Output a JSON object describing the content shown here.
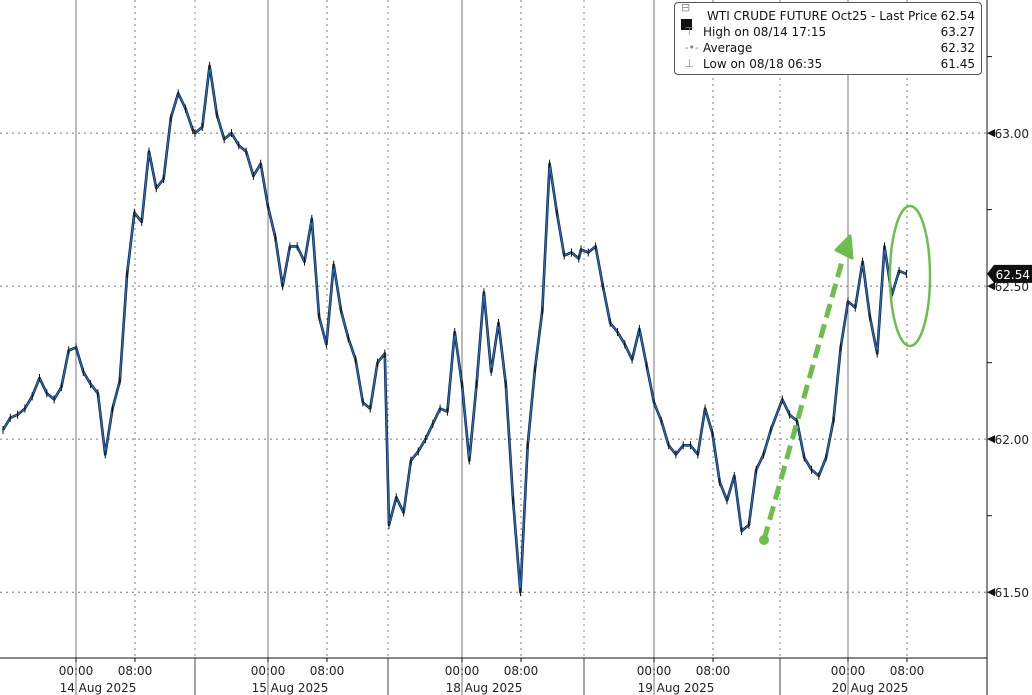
{
  "chart_data": {
    "type": "line",
    "title": "",
    "xlabel": "",
    "ylabel": "",
    "ylim": [
      61.285,
      63.435
    ],
    "grid": true,
    "legend_position": "top-right",
    "y_axis_side": "right",
    "y_ticks": [
      "61.50",
      "62.00",
      "62.50",
      "63.00"
    ],
    "x_tick_labels": [
      {
        "time": "00:00",
        "day": "14 Aug 2025"
      },
      {
        "time": "08:00",
        "day": "14 Aug 2025"
      },
      {
        "time": "00:00",
        "day": "15 Aug 2025"
      },
      {
        "time": "08:00",
        "day": "15 Aug 2025"
      },
      {
        "time": "00:00",
        "day": "18 Aug 2025"
      },
      {
        "time": "08:00",
        "day": "18 Aug 2025"
      },
      {
        "time": "00:00",
        "day": "19 Aug 2025"
      },
      {
        "time": "08:00",
        "day": "19 Aug 2025"
      },
      {
        "time": "00:00",
        "day": "20 Aug 2025"
      },
      {
        "time": "08:00",
        "day": "20 Aug 2025"
      }
    ],
    "days": [
      "14 Aug 2025",
      "15 Aug 2025",
      "18 Aug 2025",
      "19 Aug 2025",
      "20 Aug 2025"
    ],
    "series": [
      {
        "name": "WTI CRUDE FUTURE Oct25 - Last Price",
        "color": "#1f6fd0",
        "days": [
          {
            "day": "14 Aug 2025",
            "points": [
              [
                "14:00",
                62.03
              ],
              [
                "15:00",
                62.07
              ],
              [
                "16:00",
                62.08
              ],
              [
                "17:00",
                62.1
              ],
              [
                "18:00",
                62.14
              ],
              [
                "19:00",
                62.2
              ],
              [
                "20:00",
                62.15
              ],
              [
                "21:00",
                62.13
              ],
              [
                "22:00",
                62.17
              ],
              [
                "23:00",
                62.29
              ],
              [
                "00:00",
                62.3
              ],
              [
                "01:00",
                62.22
              ],
              [
                "02:00",
                62.18
              ],
              [
                "03:00",
                62.15
              ],
              [
                "04:00",
                61.95
              ],
              [
                "05:00",
                62.1
              ],
              [
                "06:00",
                62.19
              ],
              [
                "07:00",
                62.54
              ],
              [
                "08:00",
                62.74
              ],
              [
                "09:00",
                62.71
              ],
              [
                "10:00",
                62.94
              ],
              [
                "11:00",
                62.82
              ],
              [
                "12:00",
                62.85
              ],
              [
                "13:00",
                63.05
              ],
              [
                "14:00",
                63.13
              ],
              [
                "15:00",
                63.08
              ],
              [
                "16:00",
                63.01
              ]
            ]
          },
          {
            "day": "15 Aug 2025",
            "points": [
              [
                "14:00",
                63.0
              ],
              [
                "15:00",
                63.02
              ],
              [
                "16:00",
                63.22
              ],
              [
                "17:00",
                63.06
              ],
              [
                "18:00",
                62.98
              ],
              [
                "19:00",
                63.0
              ],
              [
                "20:00",
                62.96
              ],
              [
                "21:00",
                62.94
              ],
              [
                "22:00",
                62.86
              ],
              [
                "23:00",
                62.9
              ],
              [
                "00:00",
                62.76
              ],
              [
                "01:00",
                62.66
              ],
              [
                "02:00",
                62.5
              ],
              [
                "03:00",
                62.63
              ],
              [
                "04:00",
                62.63
              ],
              [
                "05:00",
                62.58
              ],
              [
                "06:00",
                62.72
              ],
              [
                "07:00",
                62.4
              ],
              [
                "08:00",
                62.31
              ],
              [
                "09:00",
                62.57
              ],
              [
                "10:00",
                62.42
              ],
              [
                "11:00",
                62.33
              ],
              [
                "12:00",
                62.26
              ],
              [
                "13:00",
                62.12
              ],
              [
                "14:00",
                62.1
              ],
              [
                "15:00",
                62.25
              ],
              [
                "16:00",
                62.28
              ]
            ]
          },
          {
            "day": "18 Aug 2025",
            "points": [
              [
                "14:00",
                61.72
              ],
              [
                "15:00",
                61.81
              ],
              [
                "16:00",
                61.76
              ],
              [
                "17:00",
                61.93
              ],
              [
                "18:00",
                61.96
              ],
              [
                "19:00",
                62.0
              ],
              [
                "20:00",
                62.05
              ],
              [
                "21:00",
                62.1
              ],
              [
                "22:00",
                62.09
              ],
              [
                "23:00",
                62.35
              ],
              [
                "00:00",
                62.18
              ],
              [
                "01:00",
                61.93
              ],
              [
                "02:00",
                62.18
              ],
              [
                "03:00",
                62.48
              ],
              [
                "04:00",
                62.22
              ],
              [
                "05:00",
                62.38
              ],
              [
                "06:00",
                62.18
              ],
              [
                "07:00",
                61.8
              ],
              [
                "08:00",
                61.5
              ],
              [
                "09:00",
                61.98
              ],
              [
                "10:00",
                62.23
              ],
              [
                "11:00",
                62.42
              ],
              [
                "12:00",
                62.9
              ],
              [
                "13:00",
                62.74
              ],
              [
                "14:00",
                62.6
              ],
              [
                "15:00",
                62.61
              ],
              [
                "16:00",
                62.59
              ]
            ]
          },
          {
            "day": "19 Aug 2025",
            "points": [
              [
                "14:00",
                62.62
              ],
              [
                "15:00",
                62.61
              ],
              [
                "16:00",
                62.63
              ],
              [
                "17:00",
                62.5
              ],
              [
                "18:00",
                62.38
              ],
              [
                "19:00",
                62.35
              ],
              [
                "20:00",
                62.31
              ],
              [
                "21:00",
                62.26
              ],
              [
                "22:00",
                62.36
              ],
              [
                "23:00",
                62.24
              ],
              [
                "00:00",
                62.12
              ],
              [
                "01:00",
                62.06
              ],
              [
                "02:00",
                61.98
              ],
              [
                "03:00",
                61.95
              ],
              [
                "04:00",
                61.98
              ],
              [
                "05:00",
                61.98
              ],
              [
                "06:00",
                61.95
              ],
              [
                "07:00",
                62.1
              ],
              [
                "08:00",
                62.02
              ],
              [
                "09:00",
                61.86
              ],
              [
                "10:00",
                61.8
              ],
              [
                "11:00",
                61.88
              ],
              [
                "12:00",
                61.7
              ],
              [
                "13:00",
                61.72
              ],
              [
                "14:00",
                61.9
              ],
              [
                "15:00",
                61.95
              ],
              [
                "16:00",
                62.03
              ]
            ]
          },
          {
            "day": "20 Aug 2025",
            "points": [
              [
                "15:00",
                62.13
              ],
              [
                "16:00",
                62.08
              ],
              [
                "17:00",
                62.06
              ],
              [
                "18:00",
                61.94
              ],
              [
                "19:00",
                61.9
              ],
              [
                "20:00",
                61.88
              ],
              [
                "21:00",
                61.94
              ],
              [
                "22:00",
                62.06
              ],
              [
                "23:00",
                62.3
              ],
              [
                "00:00",
                62.45
              ],
              [
                "01:00",
                62.43
              ],
              [
                "02:00",
                62.58
              ],
              [
                "03:00",
                62.4
              ],
              [
                "04:00",
                62.28
              ],
              [
                "05:00",
                62.63
              ],
              [
                "06:00",
                62.47
              ],
              [
                "07:00",
                62.55
              ],
              [
                "08:00",
                62.54
              ]
            ]
          }
        ]
      }
    ],
    "last_price_label": "62.54",
    "annotations": [
      {
        "type": "dashed-arrow",
        "color": "#6cbf4a",
        "description_from": "19 Aug 2025 13:30 ~61.68",
        "description_to": "20 Aug 2025 00:00 ~62.65"
      },
      {
        "type": "ellipse",
        "color": "#6cbf4a"
      }
    ]
  },
  "legend": {
    "title": "WTI CRUDE FUTURE Oct25 - Last Price",
    "title_value": "62.54",
    "rows": [
      {
        "label": "High on 08/14 17:15",
        "value": "63.27",
        "icon": "high-marker-icon"
      },
      {
        "label": "Average",
        "value": "62.32",
        "icon": "average-marker-icon"
      },
      {
        "label": "Low on 08/18 06:35",
        "value": "61.45",
        "icon": "low-marker-icon"
      }
    ]
  }
}
